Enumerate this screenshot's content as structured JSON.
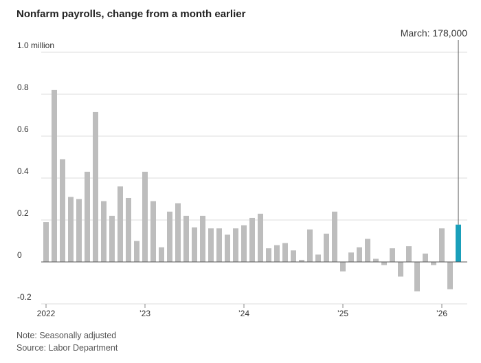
{
  "chart_data": {
    "type": "bar",
    "title": "Nonfarm payrolls, change from a month earlier",
    "annotation": "March: 178,000",
    "note": "Note: Seasonally adjusted",
    "source": "Source: Labor Department",
    "categories": [
      "2022",
      null,
      null,
      null,
      null,
      null,
      null,
      null,
      null,
      null,
      null,
      null,
      "’23",
      null,
      null,
      null,
      null,
      null,
      null,
      null,
      null,
      null,
      null,
      null,
      "’24",
      null,
      null,
      null,
      null,
      null,
      null,
      null,
      null,
      null,
      null,
      null,
      "’25",
      null,
      null,
      null,
      null,
      null,
      null,
      null,
      null,
      null,
      null,
      null,
      "’26",
      null,
      null
    ],
    "values": [
      0.19,
      0.82,
      0.49,
      0.31,
      0.3,
      0.43,
      0.715,
      0.29,
      0.22,
      0.36,
      0.305,
      0.1,
      0.43,
      0.29,
      0.07,
      0.24,
      0.28,
      0.22,
      0.165,
      0.22,
      0.16,
      0.16,
      0.13,
      0.16,
      0.175,
      0.21,
      0.23,
      0.065,
      0.08,
      0.09,
      0.055,
      0.01,
      0.155,
      0.035,
      0.135,
      0.24,
      -0.045,
      0.045,
      0.07,
      0.11,
      0.015,
      -0.015,
      0.065,
      -0.07,
      0.075,
      -0.14,
      0.04,
      -0.015,
      0.16,
      -0.13,
      0.178
    ],
    "colors": [
      "#bdbdbd",
      "#bdbdbd",
      "#bdbdbd",
      "#bdbdbd",
      "#bdbdbd",
      "#bdbdbd",
      "#bdbdbd",
      "#bdbdbd",
      "#bdbdbd",
      "#bdbdbd",
      "#bdbdbd",
      "#bdbdbd",
      "#bdbdbd",
      "#bdbdbd",
      "#bdbdbd",
      "#bdbdbd",
      "#bdbdbd",
      "#bdbdbd",
      "#bdbdbd",
      "#bdbdbd",
      "#bdbdbd",
      "#bdbdbd",
      "#bdbdbd",
      "#bdbdbd",
      "#bdbdbd",
      "#bdbdbd",
      "#bdbdbd",
      "#bdbdbd",
      "#bdbdbd",
      "#bdbdbd",
      "#bdbdbd",
      "#bdbdbd",
      "#bdbdbd",
      "#bdbdbd",
      "#bdbdbd",
      "#bdbdbd",
      "#bdbdbd",
      "#bdbdbd",
      "#bdbdbd",
      "#bdbdbd",
      "#bdbdbd",
      "#bdbdbd",
      "#bdbdbd",
      "#bdbdbd",
      "#bdbdbd",
      "#bdbdbd",
      "#bdbdbd",
      "#bdbdbd",
      "#bdbdbd",
      "#bdbdbd",
      "#1a9fba"
    ],
    "ylim": [
      -0.2,
      1.0
    ],
    "yticks": [
      -0.2,
      0,
      0.2,
      0.4,
      0.6,
      0.8,
      {
        "value": 1.0,
        "label": "1.0 million"
      }
    ],
    "grid": true
  }
}
